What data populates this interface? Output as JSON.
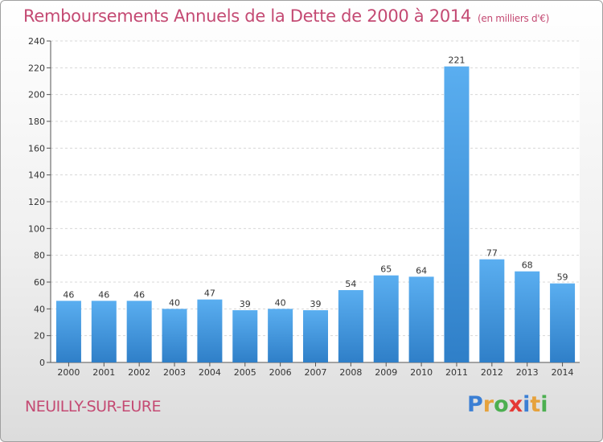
{
  "chart_data": {
    "type": "bar",
    "title": "Remboursements Annuels de la Dette de 2000 à 2014",
    "subtitle": "(en milliers d'€)",
    "categories": [
      "2000",
      "2001",
      "2002",
      "2003",
      "2004",
      "2005",
      "2006",
      "2007",
      "2008",
      "2009",
      "2010",
      "2011",
      "2012",
      "2013",
      "2014"
    ],
    "values": [
      46,
      46,
      46,
      40,
      47,
      39,
      40,
      39,
      54,
      65,
      64,
      221,
      77,
      68,
      59
    ],
    "ylim": [
      0,
      240
    ],
    "yticks": [
      0,
      20,
      40,
      60,
      80,
      100,
      120,
      140,
      160,
      180,
      200,
      220,
      240
    ],
    "grid": true,
    "xlabel": "",
    "ylabel": "",
    "bar_color": "#4a9fe0"
  },
  "place_name": "NEUILLY-SUR-EURE",
  "logo": {
    "text": "Proxiti",
    "letters": [
      {
        "ch": "P",
        "color": "#3b7fd4"
      },
      {
        "ch": "r",
        "color": "#e6a23c"
      },
      {
        "ch": "o",
        "color": "#4caf50"
      },
      {
        "ch": "x",
        "color": "#e53935"
      },
      {
        "ch": "i",
        "color": "#3b7fd4"
      },
      {
        "ch": "t",
        "color": "#e6a23c"
      },
      {
        "ch": "i",
        "color": "#4caf50"
      }
    ]
  }
}
